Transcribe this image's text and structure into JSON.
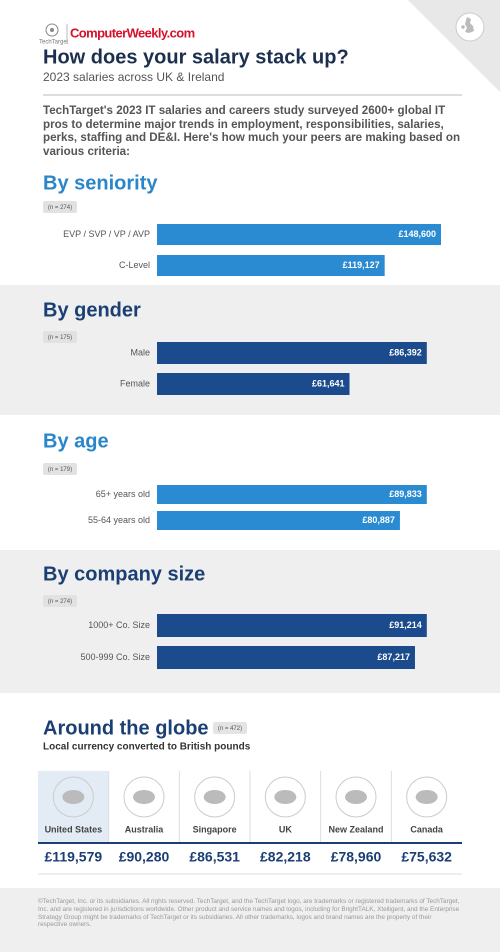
{
  "header": {
    "brand_small": "TechTarget",
    "brand": "ComputerWeekly.com",
    "title": "How does your salary stack up?",
    "subtitle": "2023 salaries across UK & Ireland"
  },
  "intro": "TechTarget's 2023 IT salaries and careers study surveyed 2600+ global IT pros to determine major trends in employment, responsibilities, salaries, perks, staffing and DE&I. Here's how much your peers are making based on various criteria:",
  "chart_data": [
    {
      "type": "bar",
      "title": "By seniority",
      "note": "(n = 274)",
      "categories": [
        "EVP / SVP / VP / AVP",
        "C-Level"
      ],
      "values": [
        148600,
        119127
      ],
      "value_labels": [
        "£148,600",
        "£119,127"
      ],
      "color": "#2b8bd2",
      "title_color": "#2a86c8"
    },
    {
      "type": "bar",
      "title": "By gender",
      "note": "(n = 175)",
      "categories": [
        "Male",
        "Female"
      ],
      "values": [
        86392,
        61641
      ],
      "value_labels": [
        "£86,392",
        "£61,641"
      ],
      "color": "#1b4b8c",
      "title_color": "#1b3f75"
    },
    {
      "type": "bar",
      "title": "By age",
      "note": "(n = 179)",
      "categories": [
        "65+ years old",
        "55-64 years old"
      ],
      "values": [
        89833,
        80887
      ],
      "value_labels": [
        "£89,833",
        "£80,887"
      ],
      "color": "#2b8bd2",
      "title_color": "#2a86c8"
    },
    {
      "type": "bar",
      "title": "By company size",
      "note": "(n = 274)",
      "categories": [
        "1000+ Co. Size",
        "500-999 Co. Size"
      ],
      "values": [
        91214,
        87217
      ],
      "value_labels": [
        "£91,214",
        "£87,217"
      ],
      "color": "#1b4b8c",
      "title_color": "#1b3f75"
    }
  ],
  "globe": {
    "title": "Around the globe",
    "note": "(n = 472)",
    "subtitle": "Local currency converted to British pounds",
    "countries": [
      {
        "name": "United States",
        "value": "£119,579"
      },
      {
        "name": "Australia",
        "value": "£90,280"
      },
      {
        "name": "Singapore",
        "value": "£86,531"
      },
      {
        "name": "UK",
        "value": "£82,218"
      },
      {
        "name": "New Zealand",
        "value": "£78,960"
      },
      {
        "name": "Canada",
        "value": "£75,632"
      }
    ]
  },
  "footer": "©TechTarget, Inc. or its subsidiaries. All rights reserved. TechTarget, and the TechTarget logo, are trademarks or registered trademarks of TechTarget, Inc. and are registered in jurisdictions worldwide. Other product and service names and logos, including for BrightTALK, Xtelligent, and the Enterprise Strategy Group might be trademarks of TechTarget or its subsidiaries. All other trademarks, logos and brand names are the property of their respective owners."
}
